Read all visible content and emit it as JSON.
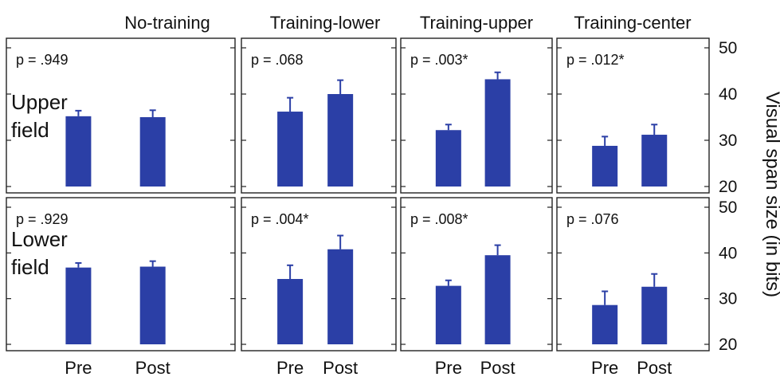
{
  "chart_data": {
    "type": "bar",
    "columns": [
      "No-training",
      "Training-lower",
      "Training-upper",
      "Training-center"
    ],
    "rows": [
      "Upper\nfield",
      "Lower\nfield"
    ],
    "categories": [
      "Pre",
      "Post"
    ],
    "ylabel": "Visual span size (in bits)",
    "ylim": [
      20,
      50
    ],
    "yticks": [
      20,
      30,
      40,
      50
    ],
    "bar_color": "#2b3fa6",
    "panels": [
      {
        "row": 0,
        "col": 0,
        "p": "p = .949",
        "values": [
          35.2,
          35.0
        ],
        "errors": [
          1.2,
          1.5
        ]
      },
      {
        "row": 0,
        "col": 1,
        "p": "p = .068",
        "values": [
          36.2,
          40.0
        ],
        "errors": [
          3.0,
          3.0
        ]
      },
      {
        "row": 0,
        "col": 2,
        "p": "p = .003*",
        "values": [
          32.2,
          43.2
        ],
        "errors": [
          1.2,
          1.5
        ]
      },
      {
        "row": 0,
        "col": 3,
        "p": "p = .012*",
        "values": [
          28.8,
          31.2
        ],
        "errors": [
          2.0,
          2.2
        ]
      },
      {
        "row": 1,
        "col": 0,
        "p": "p = .929",
        "values": [
          36.8,
          37.0
        ],
        "errors": [
          1.0,
          1.2
        ]
      },
      {
        "row": 1,
        "col": 1,
        "p": "p = .004*",
        "values": [
          34.3,
          40.8
        ],
        "errors": [
          3.0,
          3.0
        ]
      },
      {
        "row": 1,
        "col": 2,
        "p": "p = .008*",
        "values": [
          32.8,
          39.5
        ],
        "errors": [
          1.2,
          2.2
        ]
      },
      {
        "row": 1,
        "col": 3,
        "p": "p = .076",
        "values": [
          28.6,
          32.6
        ],
        "errors": [
          3.0,
          2.8
        ]
      }
    ]
  }
}
